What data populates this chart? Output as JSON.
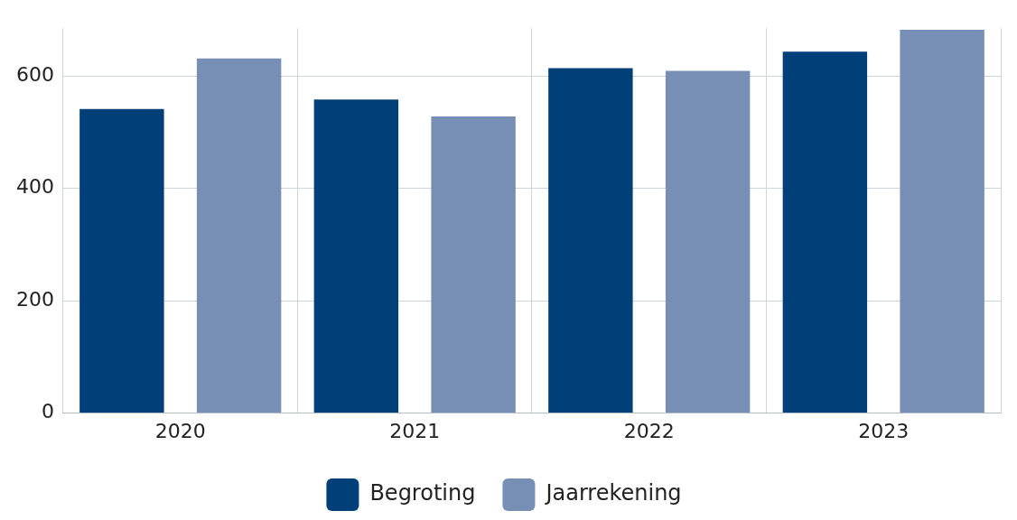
{
  "chart_data": {
    "type": "bar",
    "categories": [
      "2020",
      "2021",
      "2022",
      "2023"
    ],
    "series": [
      {
        "name": "Begroting",
        "color": "#003f78",
        "values": [
          541,
          558,
          614,
          643
        ]
      },
      {
        "name": "Jaarrekening",
        "color": "#778fb5",
        "values": [
          631,
          528,
          609,
          682
        ]
      }
    ],
    "ylim": [
      0,
      685
    ],
    "yticks": [
      0,
      200,
      400,
      600
    ],
    "grid": true,
    "legend": "bottom"
  }
}
